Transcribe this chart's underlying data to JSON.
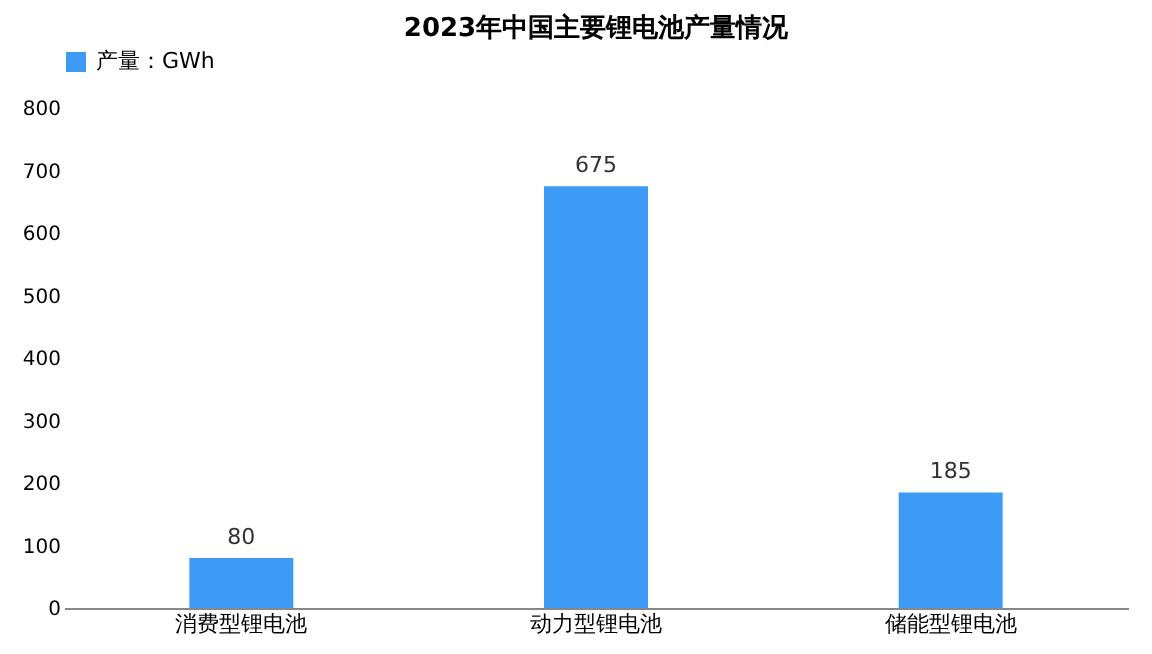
{
  "chart_data": {
    "type": "bar",
    "title": "2023年中国主要锂电池产量情况",
    "categories": [
      "消费型锂电池",
      "动力型锂电池",
      "储能型锂电池"
    ],
    "series": [
      {
        "name": "产量：GWh",
        "color": "#3d9bf5",
        "values": [
          80,
          675,
          185
        ]
      }
    ],
    "ylim": [
      0,
      800
    ],
    "yticks": [
      0,
      100,
      200,
      300,
      400,
      500,
      600,
      700,
      800
    ],
    "data_labels": true,
    "legend": "top",
    "grid": false
  }
}
